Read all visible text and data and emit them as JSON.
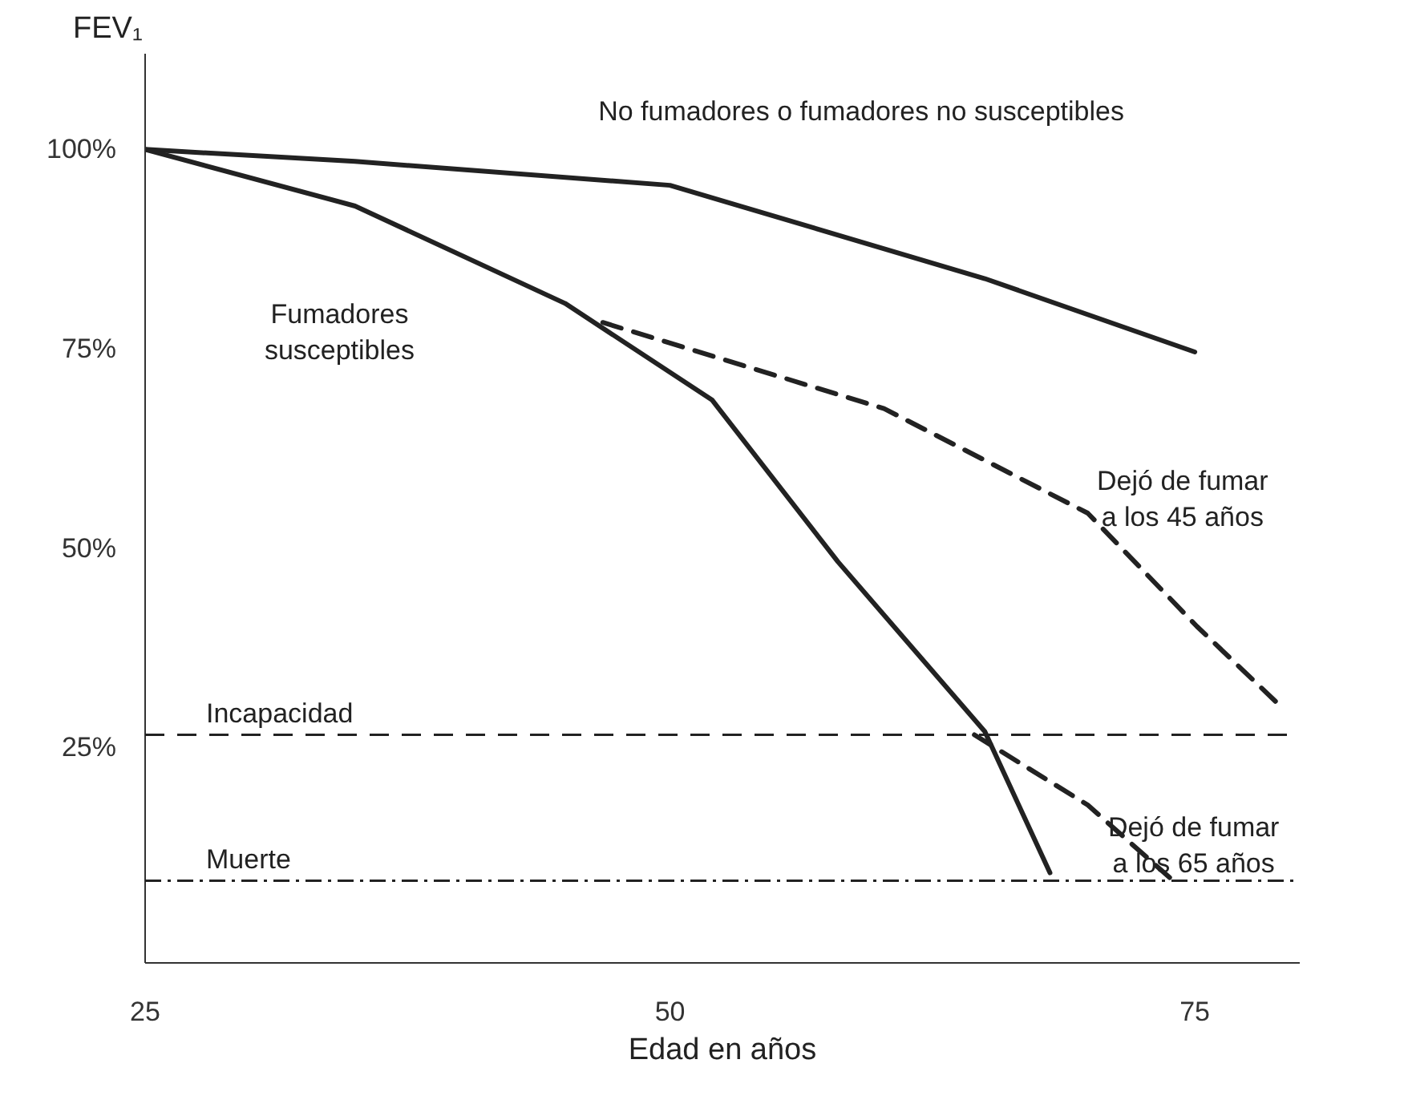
{
  "chart_data": {
    "type": "line",
    "ylabel": "FEV₁",
    "xlabel": "Edad en años",
    "xlim": [
      25,
      80
    ],
    "ylim": [
      -2,
      112
    ],
    "xticks": [
      25,
      50,
      75
    ],
    "yticks": [
      {
        "value": 100,
        "label": "100%"
      },
      {
        "value": 75,
        "label": "75%"
      },
      {
        "value": 50,
        "label": "50%"
      },
      {
        "value": 25,
        "label": "25%"
      }
    ],
    "grid": false,
    "marker": "none",
    "series": [
      {
        "name": "No fumadores o fumadores no susceptibles",
        "color": "#222222",
        "line_style": "solid",
        "x": [
          25,
          35,
          50,
          65,
          75
        ],
        "values": [
          100,
          98.5,
          95.5,
          83.8,
          74.6
        ]
      },
      {
        "name": "Fumadores\nsusceptibles",
        "color": "#222222",
        "line_style": "solid",
        "x": [
          25,
          35,
          45,
          52,
          58,
          65,
          68.1
        ],
        "values": [
          100,
          92.9,
          80.7,
          68.6,
          48.3,
          27,
          9.3
        ]
      },
      {
        "name": "Dejó de fumar\na los 45 años",
        "color": "#222222",
        "line_style": "dashed",
        "x": [
          46.8,
          60.2,
          69.9,
          75.1,
          79
        ],
        "values": [
          78.3,
          67.5,
          54.4,
          40.2,
          30.4
        ]
      },
      {
        "name": "Dejó de fumar\na los 65 años",
        "color": "#222222",
        "line_style": "dashed",
        "x": [
          64.5,
          69.9,
          73.8
        ],
        "values": [
          26.6,
          17.8,
          8.7
        ]
      }
    ],
    "ref_lines": [
      {
        "axis": "y",
        "value": 26.6,
        "label": "Incapacidad",
        "line_style": "dashed",
        "color": "#222222"
      },
      {
        "axis": "y",
        "value": 8.3,
        "label": "Muerte",
        "line_style": "dashdot",
        "color": "#222222"
      }
    ]
  }
}
